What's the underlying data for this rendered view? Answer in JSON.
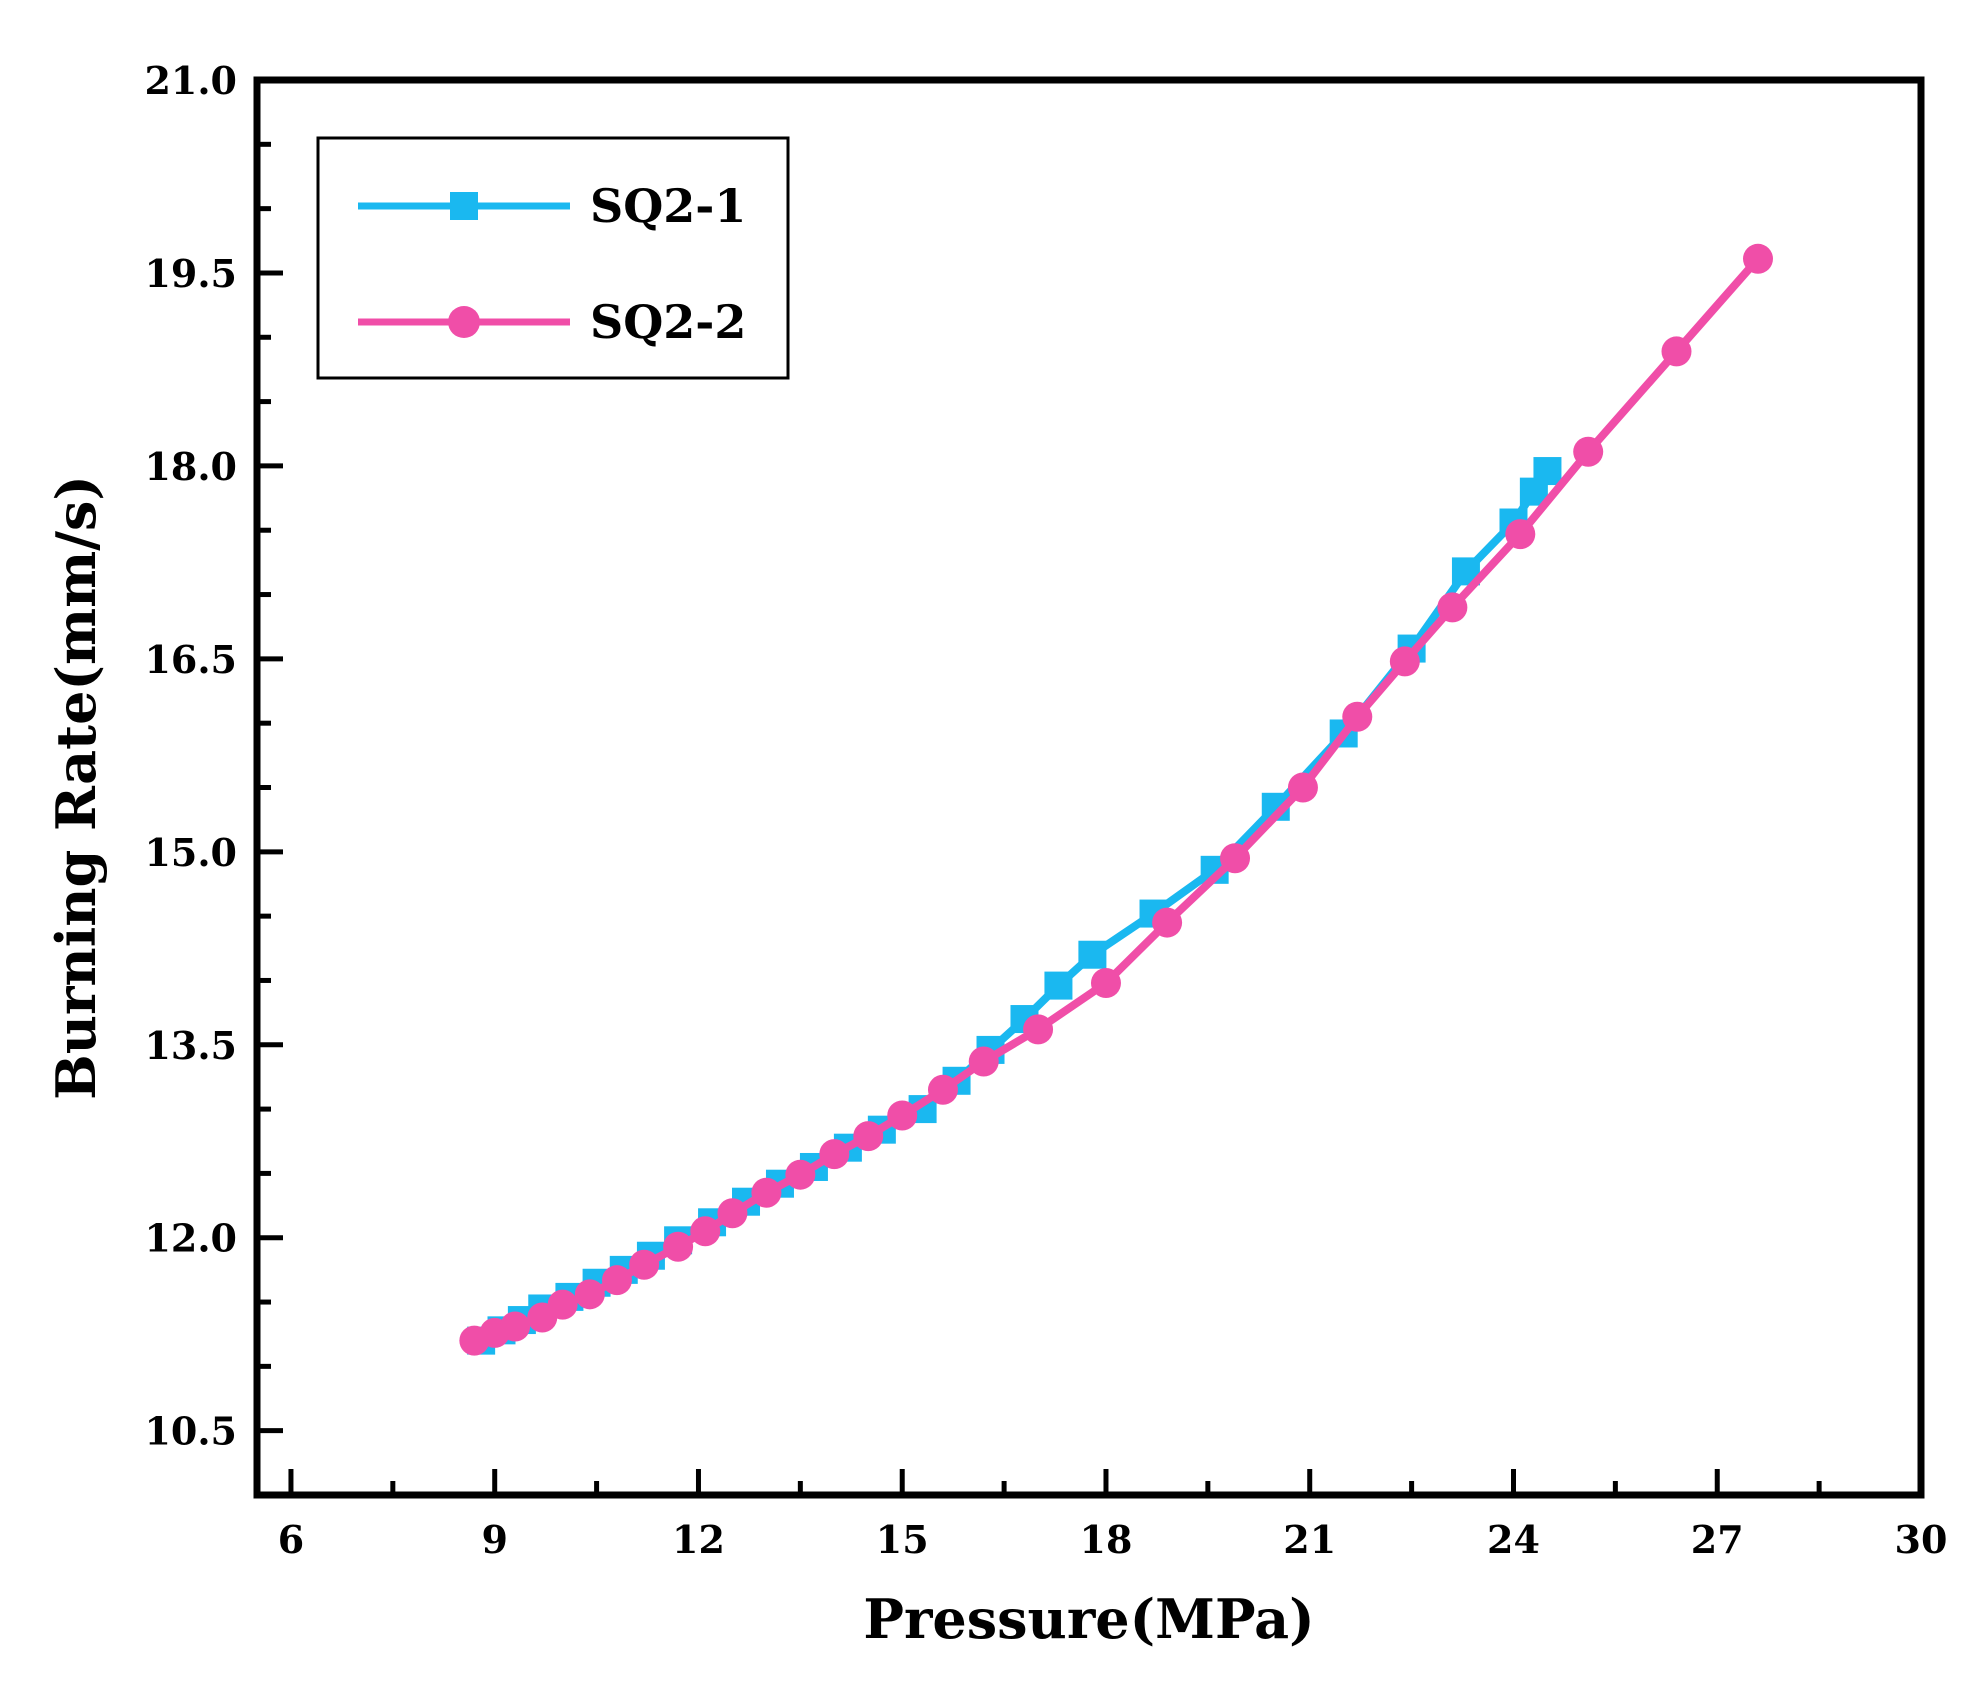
{
  "chart_data": {
    "type": "line",
    "title": "",
    "xlabel": "Pressure(MPa)",
    "ylabel": "Burning Rate(mm/s)",
    "xlim": [
      5.5,
      30
    ],
    "ylim": [
      10.0,
      21.0
    ],
    "xticks": [
      6,
      9,
      12,
      15,
      18,
      21,
      24,
      27,
      30
    ],
    "yticks": [
      10.5,
      12.0,
      13.5,
      15.0,
      16.5,
      18.0,
      19.5,
      21.0
    ],
    "xtick_labels": [
      "6",
      "9",
      "12",
      "15",
      "18",
      "21",
      "24",
      "27",
      "30"
    ],
    "ytick_labels": [
      "10.5",
      "12.0",
      "13.5",
      "15.0",
      "16.5",
      "18.0",
      "19.5",
      "21.0"
    ],
    "legend_position": "top-left",
    "grid": false,
    "series": [
      {
        "name": "SQ2-1",
        "color": "#1ab8f0",
        "marker": "square",
        "x": [
          8.8,
          9.1,
          9.4,
          9.7,
          10.1,
          10.5,
          10.9,
          11.3,
          11.7,
          12.2,
          12.7,
          13.2,
          13.7,
          14.2,
          14.7,
          15.3,
          15.8,
          16.3,
          16.8,
          17.3,
          17.8,
          18.7,
          19.6,
          20.5,
          21.5,
          22.5,
          23.3,
          24.0,
          24.3,
          24.5
        ],
        "y": [
          11.2,
          11.28,
          11.36,
          11.45,
          11.54,
          11.65,
          11.75,
          11.86,
          11.98,
          12.12,
          12.28,
          12.42,
          12.55,
          12.7,
          12.84,
          13.0,
          13.22,
          13.46,
          13.7,
          13.96,
          14.2,
          14.52,
          14.86,
          15.35,
          15.92,
          16.58,
          17.18,
          17.56,
          17.8,
          17.96
        ]
      },
      {
        "name": "SQ2-2",
        "color": "#f04ea8",
        "marker": "circle",
        "x": [
          8.7,
          9.0,
          9.3,
          9.7,
          10.0,
          10.4,
          10.8,
          11.2,
          11.7,
          12.1,
          12.5,
          13.0,
          13.5,
          14.0,
          14.5,
          15.0,
          15.6,
          16.2,
          17.0,
          18.0,
          18.9,
          19.9,
          20.9,
          21.7,
          22.4,
          23.1,
          24.1,
          25.1,
          26.4,
          27.6
        ],
        "y": [
          11.2,
          11.26,
          11.31,
          11.38,
          11.48,
          11.56,
          11.67,
          11.79,
          11.93,
          12.05,
          12.19,
          12.35,
          12.49,
          12.65,
          12.79,
          12.95,
          13.15,
          13.37,
          13.62,
          13.98,
          14.45,
          14.95,
          15.5,
          16.05,
          16.48,
          16.9,
          17.47,
          18.11,
          18.89,
          19.61
        ]
      }
    ]
  }
}
